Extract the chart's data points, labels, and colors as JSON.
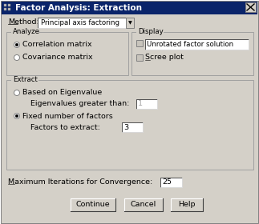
{
  "title": "Factor Analysis: Extraction",
  "bg_color": "#d4d0c8",
  "title_bar_color": "#0a246a",
  "method_label": "Method:",
  "method_value": "Principal axis factoring",
  "analyze_group": "Analyze",
  "analyze_options": [
    "Correlation matrix",
    "Covariance matrix"
  ],
  "display_group": "Display",
  "display_options": [
    "Unrotated factor solution",
    "Scree plot"
  ],
  "extract_group": "Extract",
  "extract_radio1": "Based on Eigenvalue",
  "extract_radio1_label": "Eigenvalues greater than:",
  "extract_radio1_value": "1",
  "extract_radio2": "Fixed number of factors",
  "extract_radio2_label": "Factors to extract:",
  "extract_radio2_value": "3",
  "iterations_label": "Maximum Iterations for Convergence:",
  "iterations_value": "25",
  "buttons": [
    "Continue",
    "Cancel",
    "Help"
  ],
  "font_size": 6.8,
  "small_font_size": 6.2
}
